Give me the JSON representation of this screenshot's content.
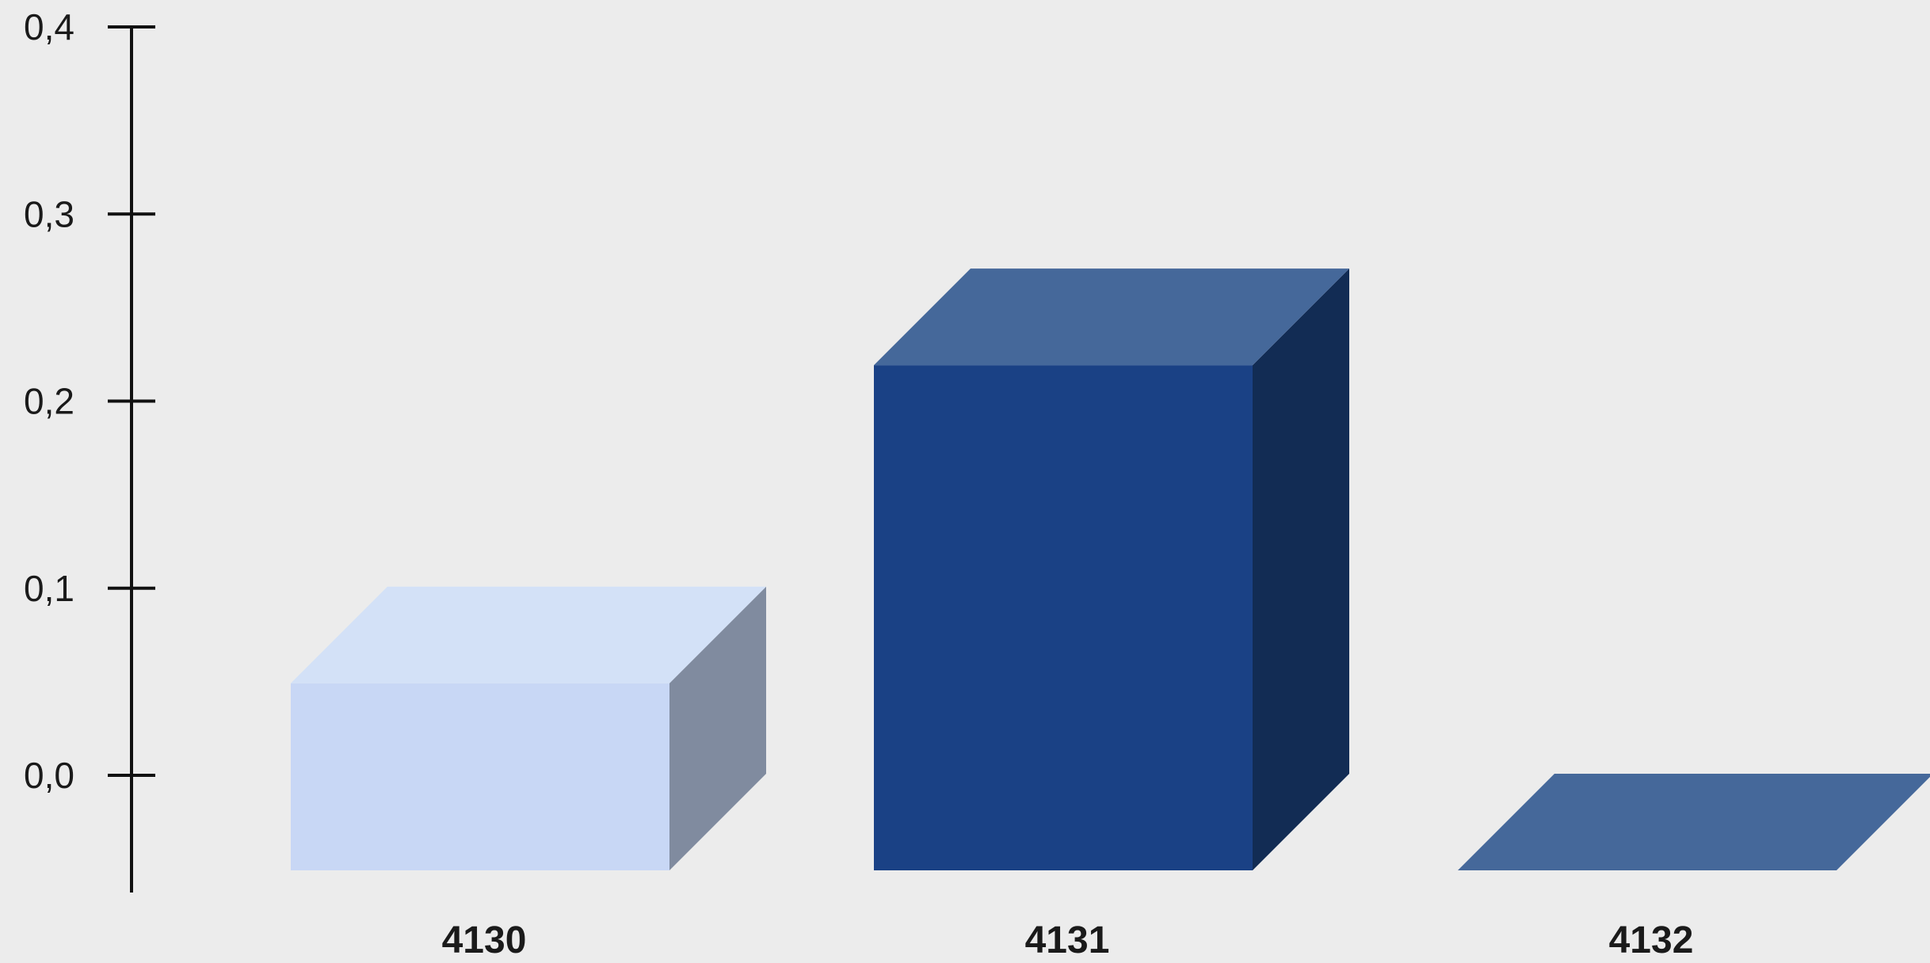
{
  "chart_data": {
    "type": "bar",
    "style": "3d",
    "categories": [
      "4130",
      "4131",
      "4132"
    ],
    "values": [
      0.1,
      0.27,
      0.0
    ],
    "ylim": [
      0.0,
      0.4
    ],
    "yticks": [
      "0,0",
      "0,1",
      "0,2",
      "0,3",
      "0,4"
    ],
    "ytick_values": [
      0.0,
      0.1,
      0.2,
      0.3,
      0.4
    ],
    "grid": false,
    "legend": "none",
    "bar_colors": [
      {
        "front": "#c8d7f5",
        "top": "#d3e1f7",
        "side": "#808b9f"
      },
      {
        "front": "#1a4185",
        "top": "#45689a",
        "side": "#122c54"
      },
      {
        "front": "#1a4185",
        "top": "#45689a",
        "side": "#122c54"
      }
    ],
    "axis_color": "#111111",
    "background": "#ececec"
  }
}
